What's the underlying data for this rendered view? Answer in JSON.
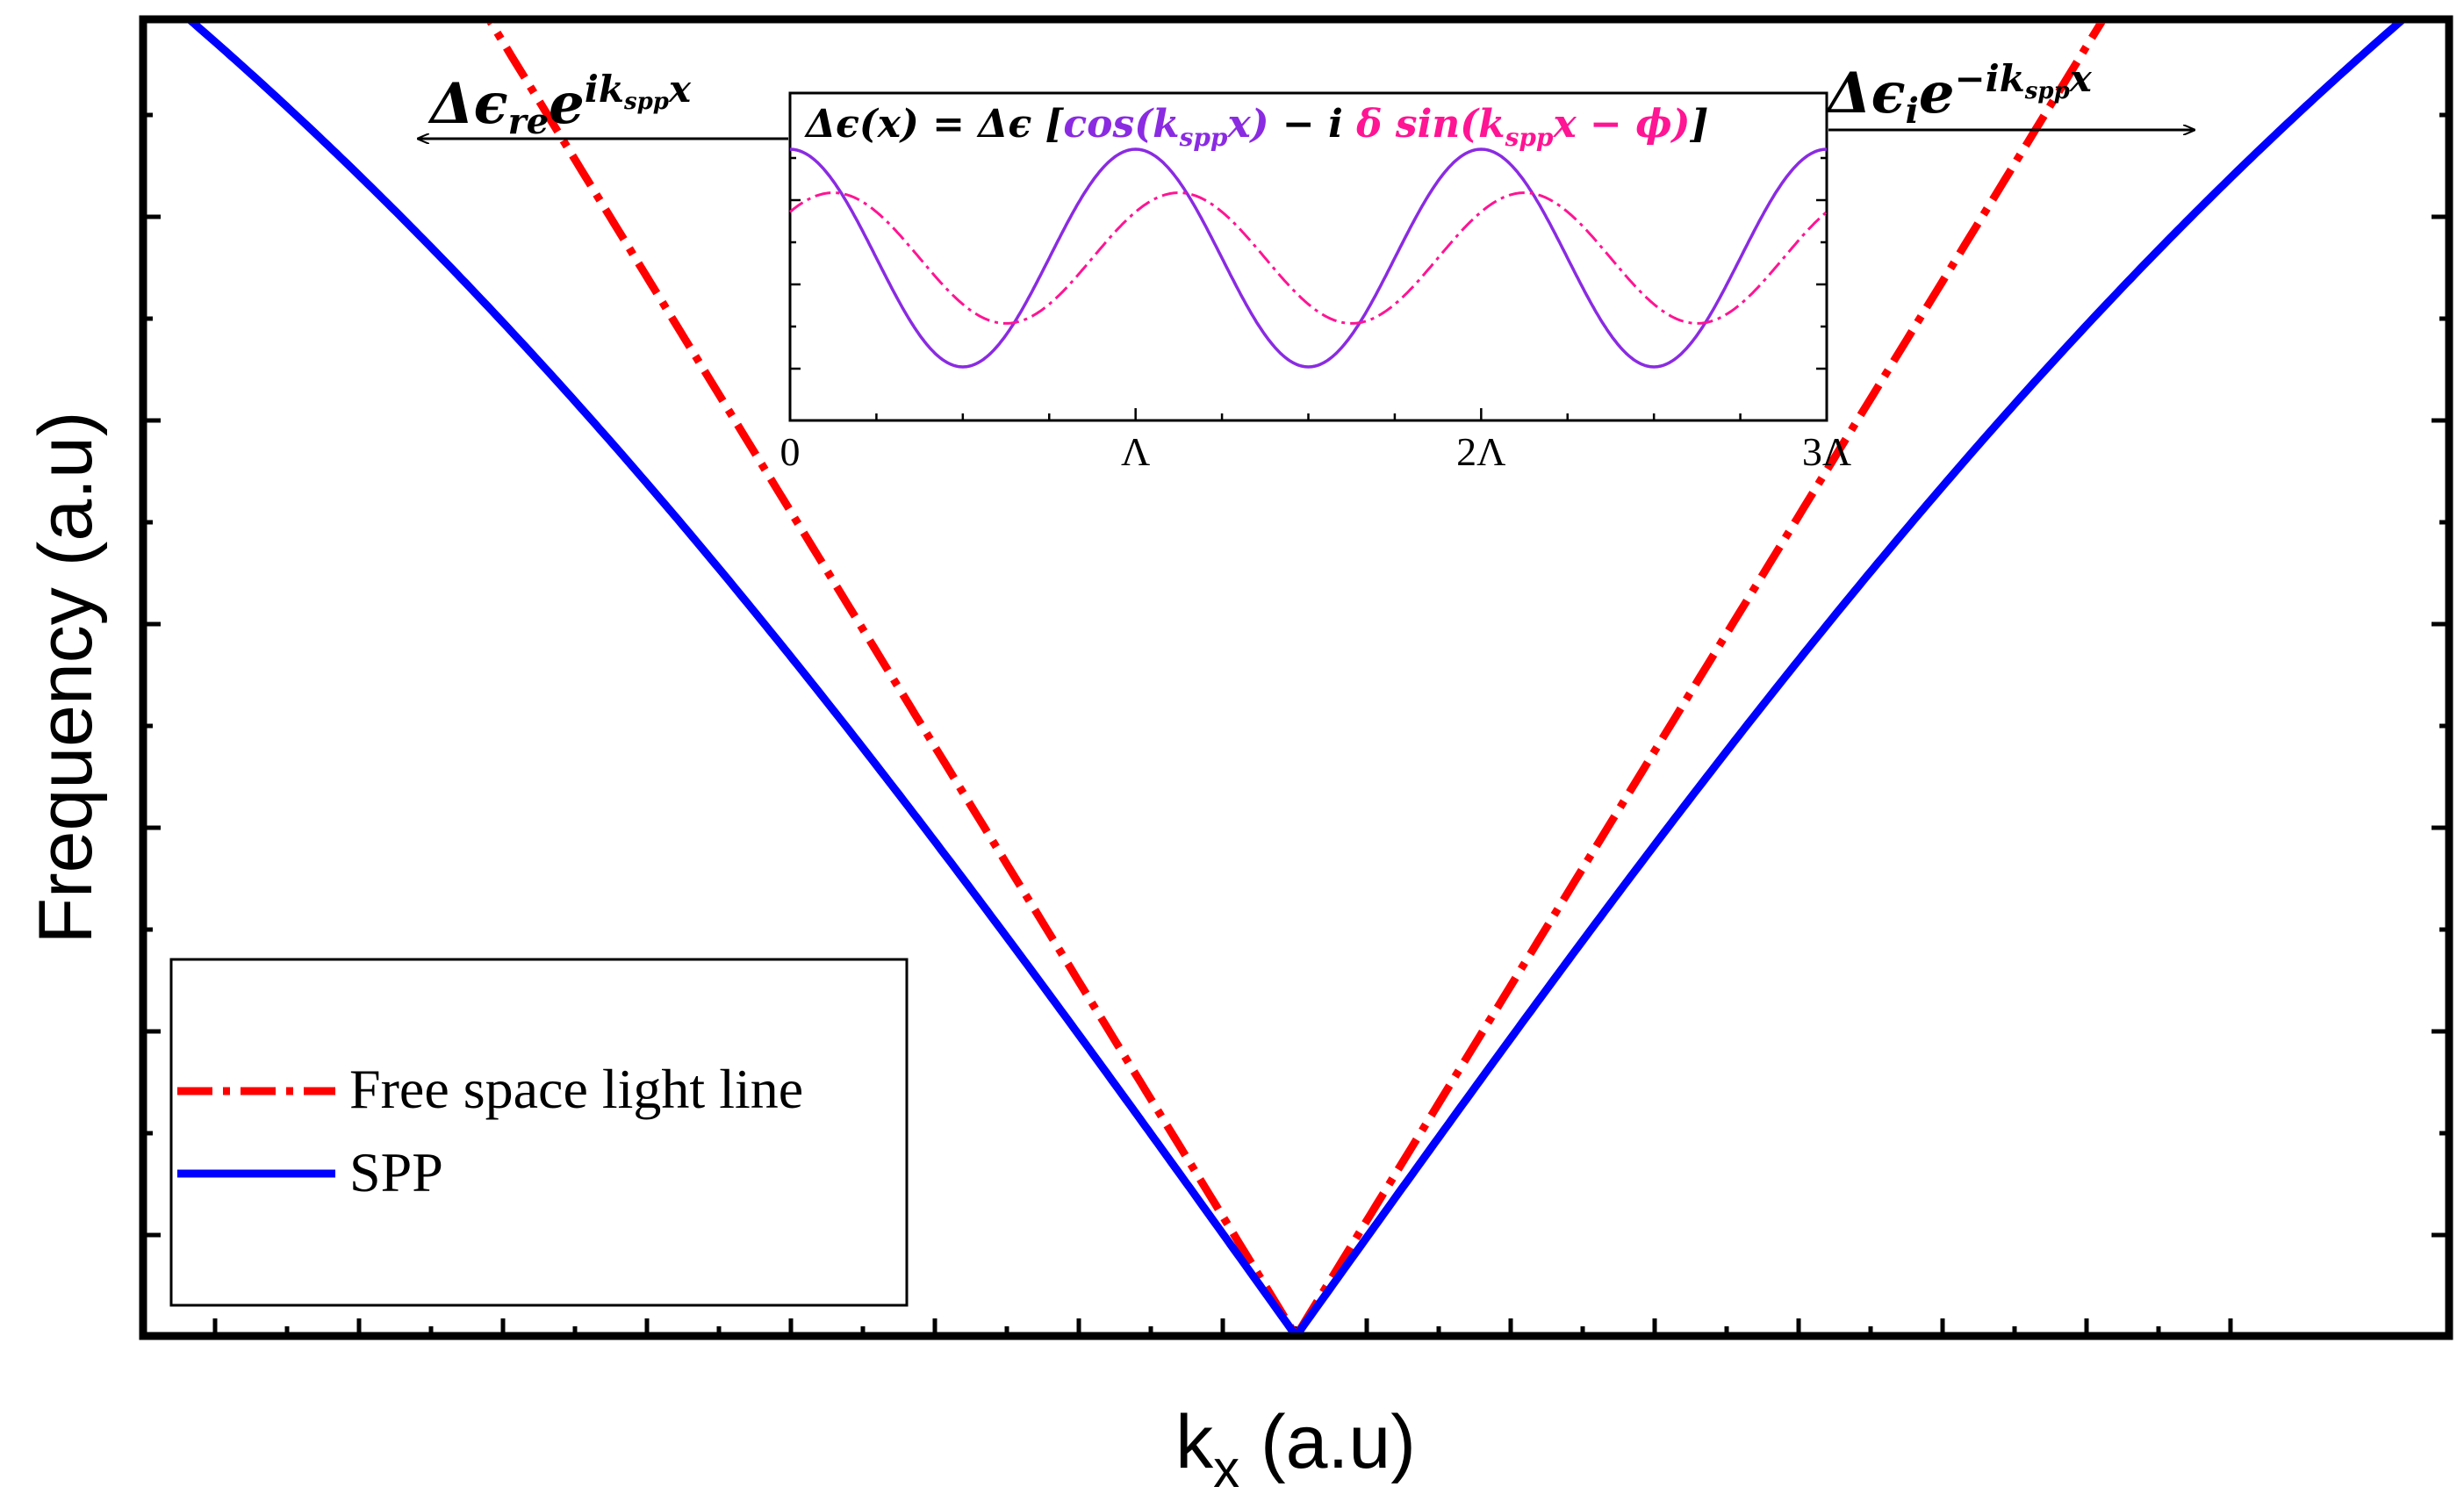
{
  "chart_data": [
    {
      "type": "line",
      "title": "",
      "xlabel": "k",
      "xlabel_sub": "x",
      "xlabel_unit": " (a.u)",
      "ylabel": "Frequency (a.u)",
      "xlim": [
        -1,
        1
      ],
      "ylim": [
        0,
        1.3
      ],
      "grid": false,
      "legend_position": "bottom-left",
      "series": [
        {
          "name": "Free space light line",
          "color": "#ff0000",
          "style": "dash-dot",
          "x": [
            -0.7,
            -0.5,
            -0.3,
            -0.1,
            0,
            0.1,
            0.3,
            0.5,
            0.7
          ],
          "y": [
            1.3,
            0.93,
            0.56,
            0.19,
            0,
            0.19,
            0.56,
            0.93,
            1.3
          ]
        },
        {
          "name": "SPP",
          "color": "#0000ff",
          "style": "solid",
          "x": [
            -0.96,
            -0.8,
            -0.6,
            -0.4,
            -0.2,
            0,
            0.2,
            0.4,
            0.6,
            0.8,
            0.96
          ],
          "y": [
            1.3,
            1.1,
            0.85,
            0.6,
            0.34,
            0,
            0.34,
            0.6,
            0.85,
            1.1,
            1.3
          ]
        }
      ],
      "annotations": {
        "left_arrow_base": "Δϵ",
        "left_arrow_sub": "re",
        "left_arrow_base2": "e",
        "left_arrow_sup": "ik",
        "left_arrow_sup_sub": "spp",
        "left_arrow_sup_tail": "x",
        "right_arrow_base": "Δϵ",
        "right_arrow_sub": "i",
        "right_arrow_base2": "e",
        "right_arrow_sup": "−ik",
        "right_arrow_sup_sub": "spp",
        "right_arrow_sup_tail": "x"
      }
    },
    {
      "type": "line",
      "title": "",
      "formula": {
        "lhs": "Δϵ(x) = Δϵ [",
        "cos_part": "cos(k",
        "cos_sub": "spp",
        "cos_tail": "x)",
        "mid": " − i ",
        "sin_part": "δ sin(k",
        "sin_sub": "spp",
        "sin_tail": "x − ϕ)",
        "rhs": "]"
      },
      "xlim": [
        0,
        3
      ],
      "ylim": [
        -1.25,
        1.25
      ],
      "x_ticks": [
        0,
        1,
        2,
        3
      ],
      "x_tick_labels": [
        "0",
        "Λ",
        "2Λ",
        "3Λ"
      ],
      "series": [
        {
          "color": "#8a2be2",
          "style": "solid",
          "function": "cos(2πx)",
          "x": [
            0,
            0.5,
            1,
            1.5,
            2,
            2.5,
            3
          ],
          "y": [
            1,
            -1,
            1,
            -1,
            1,
            -1,
            1
          ]
        },
        {
          "color": "#ff1493",
          "style": "dash-dot",
          "function": "0.6·sin(2πx + π/4)",
          "x": [
            0,
            0.125,
            0.625,
            1.125,
            1.625,
            2.125,
            2.625,
            3
          ],
          "y": [
            0.42,
            0.6,
            -0.6,
            0.6,
            -0.6,
            0.6,
            -0.6,
            0.42
          ]
        }
      ]
    }
  ]
}
